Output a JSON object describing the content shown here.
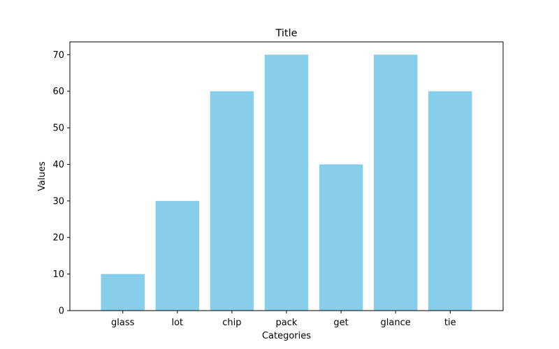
{
  "chart_data": {
    "type": "bar",
    "title": "Title",
    "xlabel": "Categories",
    "ylabel": "Values",
    "categories": [
      "glass",
      "lot",
      "chip",
      "pack",
      "get",
      "glance",
      "tie"
    ],
    "values": [
      10,
      30,
      60,
      70,
      40,
      70,
      60
    ],
    "ylim": [
      0,
      73.5
    ],
    "yticks": [
      0,
      10,
      20,
      30,
      40,
      50,
      60,
      70
    ],
    "bar_color": "#87ceeb",
    "grid": false,
    "legend": "none"
  }
}
